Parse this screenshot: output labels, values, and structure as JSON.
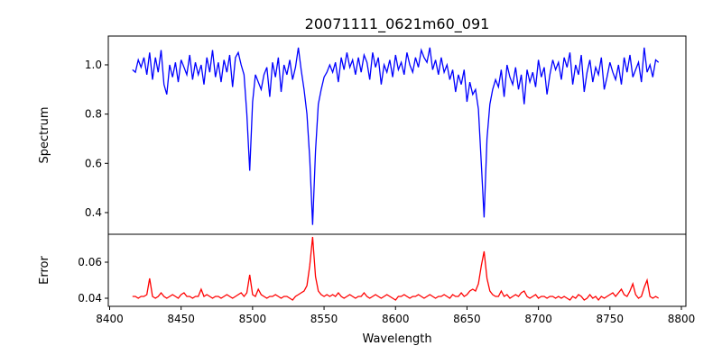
{
  "chart_data": [
    {
      "type": "line",
      "title": "20071111_0621m60_091",
      "xlabel": "",
      "ylabel": "Spectrum",
      "xlim": [
        8400,
        8800
      ],
      "ylim": [
        0.312,
        1.117
      ],
      "yticks": [
        0.4,
        0.6,
        0.8,
        1.0
      ],
      "ytick_labels": [
        "0.4",
        "0.6",
        "0.8",
        "1.0"
      ],
      "grid": false,
      "series": [
        {
          "name": "Spectrum",
          "color": "#0000ff",
          "x_start": 8416,
          "x_step": 2,
          "values": [
            0.98,
            0.97,
            1.02,
            0.99,
            1.03,
            0.96,
            1.05,
            0.94,
            1.03,
            0.97,
            1.06,
            0.92,
            0.88,
            1.0,
            0.95,
            1.01,
            0.93,
            1.02,
            0.99,
            0.96,
            1.04,
            0.94,
            1.01,
            0.96,
            1.0,
            0.92,
            1.03,
            0.97,
            1.06,
            0.95,
            1.01,
            0.93,
            1.02,
            0.97,
            1.04,
            0.91,
            1.03,
            1.05,
            1.0,
            0.96,
            0.8,
            0.57,
            0.85,
            0.96,
            0.93,
            0.9,
            0.96,
            0.99,
            0.87,
            1.01,
            0.95,
            1.03,
            0.89,
            1.0,
            0.96,
            1.02,
            0.94,
            0.99,
            1.07,
            0.98,
            0.9,
            0.8,
            0.62,
            0.35,
            0.65,
            0.84,
            0.9,
            0.95,
            0.97,
            1.0,
            0.97,
            1.01,
            0.93,
            1.03,
            0.98,
            1.05,
            0.99,
            1.02,
            0.96,
            1.03,
            0.97,
            1.04,
            1.01,
            0.94,
            1.05,
            0.99,
            1.03,
            0.92,
            1.0,
            0.97,
            1.02,
            0.95,
            1.04,
            0.98,
            1.01,
            0.96,
            1.05,
            1.0,
            0.97,
            1.03,
            0.99,
            1.06,
            1.03,
            1.01,
            1.07,
            0.98,
            1.02,
            0.96,
            1.03,
            0.97,
            1.0,
            0.94,
            0.98,
            0.89,
            0.96,
            0.92,
            0.98,
            0.85,
            0.93,
            0.88,
            0.9,
            0.82,
            0.6,
            0.38,
            0.7,
            0.84,
            0.9,
            0.94,
            0.91,
            0.98,
            0.87,
            1.0,
            0.95,
            0.92,
            0.99,
            0.9,
            0.96,
            0.84,
            0.98,
            0.93,
            0.97,
            0.91,
            1.02,
            0.95,
            0.99,
            0.88,
            0.96,
            1.02,
            0.98,
            1.01,
            0.94,
            1.03,
            0.99,
            1.05,
            0.92,
            1.0,
            0.96,
            1.04,
            0.89,
            0.97,
            1.02,
            0.93,
            0.99,
            0.96,
            1.03,
            0.9,
            0.95,
            1.01,
            0.97,
            0.94,
            1.0,
            0.92,
            1.03,
            0.97,
            1.04,
            0.95,
            0.98,
            1.01,
            0.93,
            1.07,
            0.97,
            1.0,
            0.95,
            1.02,
            1.01
          ]
        }
      ]
    },
    {
      "type": "line",
      "title": "",
      "xlabel": "Wavelength",
      "ylabel": "Error",
      "xlim": [
        8400,
        8800
      ],
      "ylim": [
        0.0355,
        0.0755
      ],
      "xticks": [
        8400,
        8450,
        8500,
        8550,
        8600,
        8650,
        8700,
        8750,
        8800
      ],
      "xtick_labels": [
        "8400",
        "8450",
        "8500",
        "8550",
        "8600",
        "8650",
        "8700",
        "8750",
        "8800"
      ],
      "yticks": [
        0.04,
        0.06
      ],
      "ytick_labels": [
        "0.04",
        "0.06"
      ],
      "grid": false,
      "series": [
        {
          "name": "Error",
          "color": "#ff0000",
          "x_start": 8416,
          "x_step": 2,
          "values": [
            0.041,
            0.041,
            0.04,
            0.041,
            0.041,
            0.042,
            0.051,
            0.041,
            0.04,
            0.041,
            0.043,
            0.041,
            0.04,
            0.041,
            0.042,
            0.041,
            0.04,
            0.042,
            0.043,
            0.041,
            0.041,
            0.04,
            0.041,
            0.041,
            0.045,
            0.041,
            0.042,
            0.041,
            0.04,
            0.041,
            0.041,
            0.04,
            0.041,
            0.042,
            0.041,
            0.04,
            0.041,
            0.042,
            0.043,
            0.041,
            0.043,
            0.053,
            0.042,
            0.041,
            0.045,
            0.042,
            0.041,
            0.04,
            0.041,
            0.041,
            0.042,
            0.041,
            0.04,
            0.041,
            0.041,
            0.04,
            0.039,
            0.041,
            0.042,
            0.043,
            0.044,
            0.047,
            0.058,
            0.074,
            0.052,
            0.044,
            0.042,
            0.041,
            0.042,
            0.041,
            0.042,
            0.041,
            0.043,
            0.041,
            0.04,
            0.041,
            0.042,
            0.041,
            0.04,
            0.041,
            0.041,
            0.043,
            0.041,
            0.04,
            0.041,
            0.042,
            0.041,
            0.04,
            0.041,
            0.042,
            0.041,
            0.04,
            0.039,
            0.041,
            0.041,
            0.042,
            0.041,
            0.04,
            0.041,
            0.041,
            0.042,
            0.041,
            0.04,
            0.041,
            0.042,
            0.041,
            0.04,
            0.041,
            0.041,
            0.042,
            0.041,
            0.04,
            0.042,
            0.041,
            0.041,
            0.043,
            0.041,
            0.042,
            0.044,
            0.045,
            0.044,
            0.048,
            0.058,
            0.066,
            0.051,
            0.044,
            0.042,
            0.041,
            0.041,
            0.044,
            0.041,
            0.042,
            0.04,
            0.041,
            0.042,
            0.041,
            0.043,
            0.044,
            0.041,
            0.04,
            0.041,
            0.042,
            0.04,
            0.041,
            0.041,
            0.04,
            0.041,
            0.041,
            0.04,
            0.041,
            0.04,
            0.041,
            0.04,
            0.039,
            0.041,
            0.04,
            0.042,
            0.041,
            0.039,
            0.04,
            0.042,
            0.04,
            0.041,
            0.039,
            0.041,
            0.04,
            0.041,
            0.042,
            0.043,
            0.041,
            0.043,
            0.045,
            0.042,
            0.041,
            0.044,
            0.048,
            0.042,
            0.04,
            0.041,
            0.046,
            0.05,
            0.041,
            0.04,
            0.041,
            0.04
          ]
        }
      ]
    }
  ]
}
